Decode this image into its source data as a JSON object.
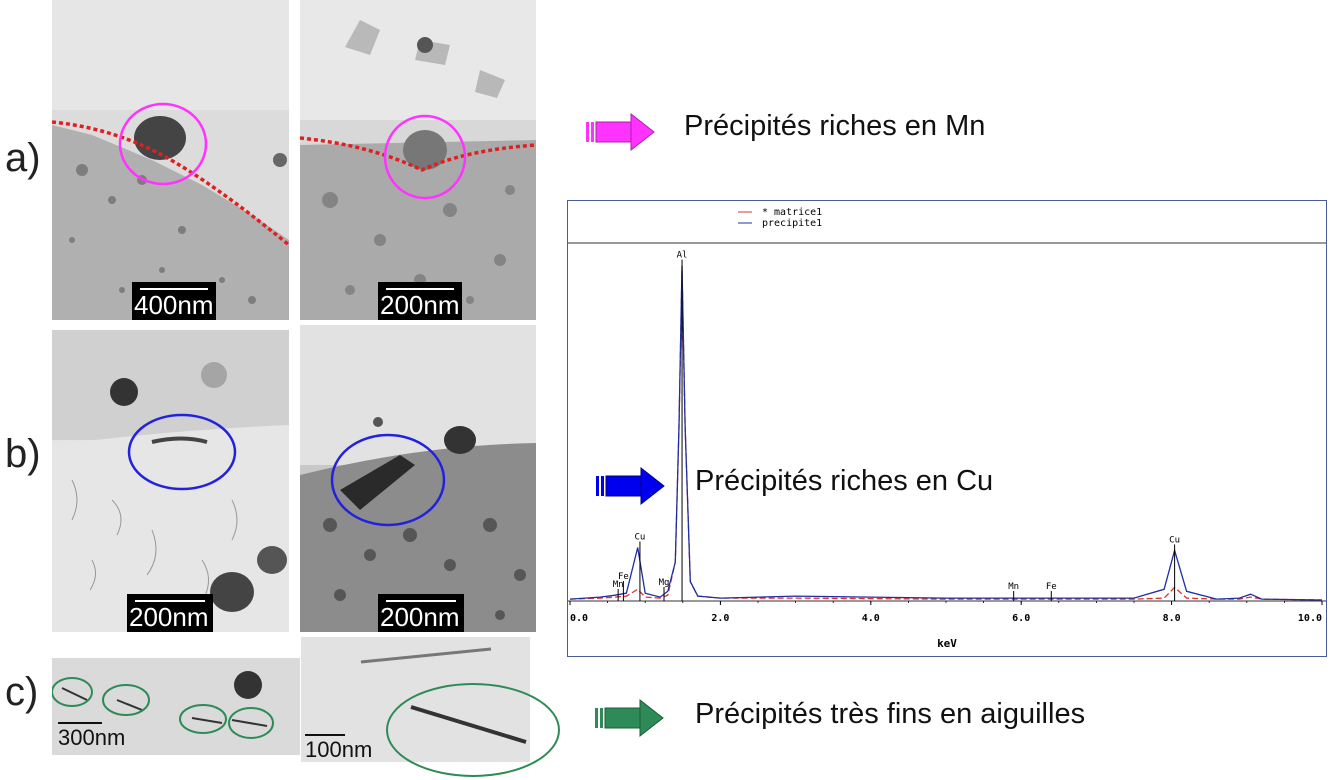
{
  "rows": {
    "a_label": "a)",
    "b_label": "b)",
    "c_label": "c)"
  },
  "scale_bars": {
    "a1": "400nm",
    "a2": "200nm",
    "b1": "200nm",
    "b2": "200nm",
    "c1": "300nm",
    "c2": "100nm"
  },
  "captions": {
    "mn": "Précipités riches en Mn",
    "cu": "Précipités riches en Cu",
    "needles": "Précipités très fins en aiguilles"
  },
  "colors": {
    "mn": "#ff33ff",
    "cu": "#0000ee",
    "needles": "#2e8b57",
    "boundary": "#e02020"
  },
  "chart_data": {
    "type": "line",
    "legend": [
      {
        "marker": "*",
        "name": "matrice1",
        "color": "#e03030"
      },
      {
        "marker": "",
        "name": "precipite1",
        "color": "#2030a0"
      }
    ],
    "legend_placement": "top-center",
    "xlabel": "keV",
    "xlim": [
      0.0,
      10.0
    ],
    "x_ticks": [
      "0.0",
      "2.0",
      "4.0",
      "6.0",
      "8.0",
      "10.0"
    ],
    "peak_labels": [
      {
        "label": "Fe",
        "x": 0.71
      },
      {
        "label": "Mn",
        "x": 0.64
      },
      {
        "label": "Cu",
        "x": 0.93
      },
      {
        "label": "Mg",
        "x": 1.25
      },
      {
        "label": "Al",
        "x": 1.49
      },
      {
        "label": "Mn",
        "x": 5.9
      },
      {
        "label": "Fe",
        "x": 6.4
      },
      {
        "label": "Cu",
        "x": 8.04
      }
    ],
    "series": [
      {
        "name": "matrice1",
        "x": [
          0.0,
          0.4,
          0.6,
          0.75,
          0.9,
          1.0,
          1.2,
          1.3,
          1.4,
          1.45,
          1.49,
          1.53,
          1.6,
          1.7,
          2.0,
          3.0,
          5.0,
          7.5,
          7.9,
          8.04,
          8.2,
          8.6,
          8.9,
          9.05,
          9.2,
          10.0
        ],
        "y": [
          2,
          3,
          4,
          5,
          12,
          4,
          3,
          6,
          40,
          180,
          340,
          180,
          20,
          5,
          3,
          3,
          2,
          2,
          3,
          14,
          3,
          2,
          2,
          4,
          2,
          1
        ]
      },
      {
        "name": "precipite1",
        "x": [
          0.0,
          0.4,
          0.6,
          0.75,
          0.9,
          1.0,
          1.2,
          1.3,
          1.4,
          1.45,
          1.49,
          1.53,
          1.6,
          1.7,
          2.0,
          3.0,
          5.0,
          7.5,
          7.9,
          8.04,
          8.2,
          8.6,
          8.9,
          9.05,
          9.2,
          10.0
        ],
        "y": [
          2,
          4,
          6,
          8,
          55,
          8,
          4,
          10,
          40,
          180,
          345,
          180,
          20,
          5,
          3,
          5,
          3,
          3,
          12,
          52,
          10,
          2,
          3,
          7,
          2,
          1
        ]
      }
    ],
    "ylim": [
      0,
      360
    ],
    "grid": false
  }
}
